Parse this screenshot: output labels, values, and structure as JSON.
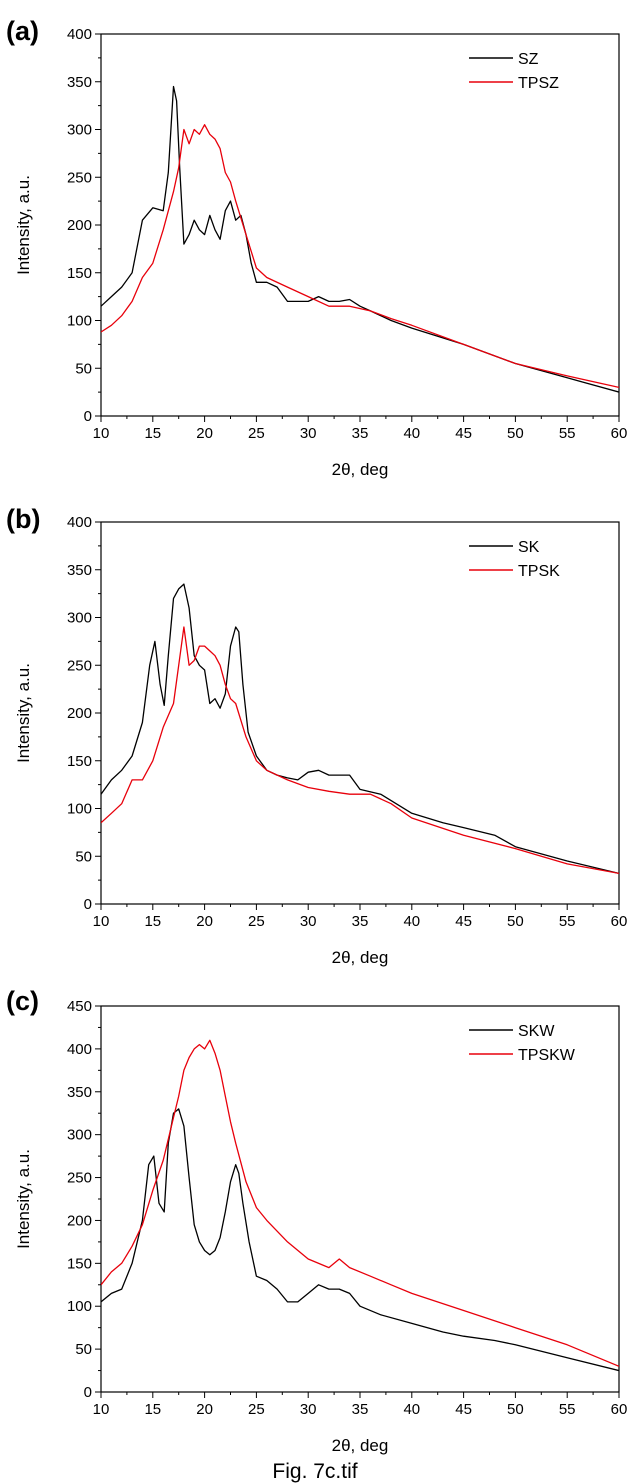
{
  "colors": {
    "black_series": "#000000",
    "red_series": "#e8000b"
  },
  "caption": "Fig. 7c.tif",
  "chart_data": [
    {
      "panel_label": "(a)",
      "type": "line",
      "xlabel": "2θ, deg",
      "ylabel": "Intensity, a.u.",
      "xlim": [
        10,
        60
      ],
      "ylim": [
        0,
        400
      ],
      "xticks": [
        10,
        15,
        20,
        25,
        30,
        35,
        40,
        45,
        50,
        55,
        60
      ],
      "yticks": [
        0,
        50,
        100,
        150,
        200,
        250,
        300,
        350,
        400
      ],
      "legend_position": "top-right",
      "series": [
        {
          "name": "SZ",
          "color": "#000000",
          "x": [
            10,
            11,
            12,
            13,
            14,
            15,
            16,
            16.5,
            17,
            17.3,
            17.6,
            18,
            18.5,
            19,
            19.5,
            20,
            20.5,
            21,
            21.5,
            22,
            22.5,
            23,
            23.5,
            24,
            24.5,
            25,
            26,
            27,
            28,
            30,
            31,
            32,
            33,
            34,
            35,
            36,
            38,
            40,
            45,
            50,
            55,
            60
          ],
          "y": [
            115,
            125,
            135,
            150,
            205,
            218,
            215,
            255,
            345,
            330,
            260,
            180,
            190,
            205,
            195,
            190,
            210,
            195,
            185,
            215,
            225,
            205,
            210,
            190,
            160,
            140,
            140,
            135,
            120,
            120,
            125,
            120,
            120,
            122,
            115,
            110,
            100,
            92,
            75,
            55,
            40,
            25
          ]
        },
        {
          "name": "TPSZ",
          "color": "#e8000b",
          "x": [
            10,
            11,
            12,
            13,
            14,
            15,
            16,
            17,
            17.5,
            18,
            18.5,
            19,
            19.5,
            20,
            20.5,
            21,
            21.5,
            22,
            22.5,
            23,
            24,
            25,
            26,
            28,
            30,
            32,
            34,
            36,
            38,
            40,
            45,
            50,
            55,
            60
          ],
          "y": [
            88,
            95,
            105,
            120,
            145,
            160,
            195,
            235,
            260,
            300,
            285,
            300,
            295,
            305,
            295,
            290,
            280,
            255,
            245,
            225,
            190,
            155,
            145,
            135,
            125,
            115,
            115,
            110,
            102,
            95,
            75,
            55,
            42,
            30
          ]
        }
      ]
    },
    {
      "panel_label": "(b)",
      "type": "line",
      "xlabel": "2θ, deg",
      "ylabel": "Intensity, a.u.",
      "xlim": [
        10,
        60
      ],
      "ylim": [
        0,
        400
      ],
      "xticks": [
        10,
        15,
        20,
        25,
        30,
        35,
        40,
        45,
        50,
        55,
        60
      ],
      "yticks": [
        0,
        50,
        100,
        150,
        200,
        250,
        300,
        350,
        400
      ],
      "legend_position": "top-right",
      "series": [
        {
          "name": "SK",
          "color": "#000000",
          "x": [
            10,
            11,
            12,
            13,
            14,
            14.7,
            15.2,
            15.7,
            16.1,
            16.5,
            17,
            17.5,
            18,
            18.5,
            19,
            19.5,
            20,
            20.5,
            21,
            21.5,
            22,
            22.5,
            23,
            23.3,
            23.7,
            24.2,
            25,
            26,
            27,
            28,
            29,
            30,
            31,
            32,
            33,
            34,
            35,
            37,
            40,
            43,
            45,
            48,
            50,
            55,
            60
          ],
          "y": [
            115,
            130,
            140,
            155,
            190,
            250,
            275,
            230,
            208,
            260,
            320,
            330,
            335,
            310,
            260,
            250,
            245,
            210,
            215,
            205,
            220,
            270,
            290,
            285,
            230,
            180,
            155,
            140,
            135,
            132,
            130,
            138,
            140,
            135,
            135,
            135,
            120,
            115,
            95,
            85,
            80,
            72,
            60,
            45,
            32
          ]
        },
        {
          "name": "TPSK",
          "color": "#e8000b",
          "x": [
            10,
            11,
            12,
            13,
            14,
            15,
            16,
            17,
            17.5,
            18,
            18.5,
            19,
            19.5,
            20,
            20.5,
            21,
            21.5,
            22,
            22.5,
            23,
            24,
            25,
            26,
            28,
            30,
            32,
            34,
            36,
            38,
            40,
            45,
            50,
            55,
            60
          ],
          "y": [
            85,
            95,
            105,
            130,
            130,
            150,
            185,
            210,
            250,
            290,
            250,
            255,
            270,
            270,
            265,
            260,
            250,
            230,
            215,
            210,
            175,
            150,
            140,
            130,
            122,
            118,
            115,
            115,
            105,
            90,
            72,
            58,
            42,
            32
          ]
        }
      ]
    },
    {
      "panel_label": "(c)",
      "type": "line",
      "xlabel": "2θ, deg",
      "ylabel": "Intensity, a.u.",
      "xlim": [
        10,
        60
      ],
      "ylim": [
        0,
        450
      ],
      "xticks": [
        10,
        15,
        20,
        25,
        30,
        35,
        40,
        45,
        50,
        55,
        60
      ],
      "yticks": [
        0,
        50,
        100,
        150,
        200,
        250,
        300,
        350,
        400,
        450
      ],
      "legend_position": "top-right",
      "series": [
        {
          "name": "SKW",
          "color": "#000000",
          "x": [
            10,
            11,
            12,
            13,
            14,
            14.6,
            15.1,
            15.6,
            16.1,
            16.5,
            17,
            17.5,
            18,
            18.5,
            19,
            19.5,
            20,
            20.5,
            21,
            21.5,
            22,
            22.5,
            23,
            23.3,
            23.7,
            24.3,
            25,
            26,
            27,
            28,
            29,
            30,
            31,
            32,
            33,
            34,
            35,
            37,
            40,
            43,
            45,
            48,
            50,
            55,
            60
          ],
          "y": [
            105,
            115,
            120,
            150,
            200,
            265,
            275,
            220,
            210,
            290,
            325,
            330,
            310,
            250,
            195,
            175,
            165,
            160,
            165,
            180,
            210,
            245,
            265,
            255,
            220,
            175,
            135,
            130,
            120,
            105,
            105,
            115,
            125,
            120,
            120,
            115,
            100,
            90,
            80,
            70,
            65,
            60,
            55,
            40,
            25
          ]
        },
        {
          "name": "TPSKW",
          "color": "#e8000b",
          "x": [
            10,
            11,
            12,
            13,
            14,
            15,
            16,
            17,
            17.5,
            18,
            18.5,
            19,
            19.5,
            20,
            20.5,
            21,
            21.5,
            22,
            22.5,
            23,
            24,
            25,
            26,
            28,
            30,
            32,
            33,
            34,
            36,
            38,
            40,
            45,
            50,
            55,
            60
          ],
          "y": [
            125,
            140,
            150,
            170,
            195,
            235,
            270,
            320,
            345,
            375,
            390,
            400,
            405,
            400,
            410,
            395,
            375,
            345,
            315,
            290,
            245,
            215,
            200,
            175,
            155,
            145,
            155,
            145,
            135,
            125,
            115,
            95,
            75,
            55,
            30
          ]
        }
      ]
    }
  ]
}
